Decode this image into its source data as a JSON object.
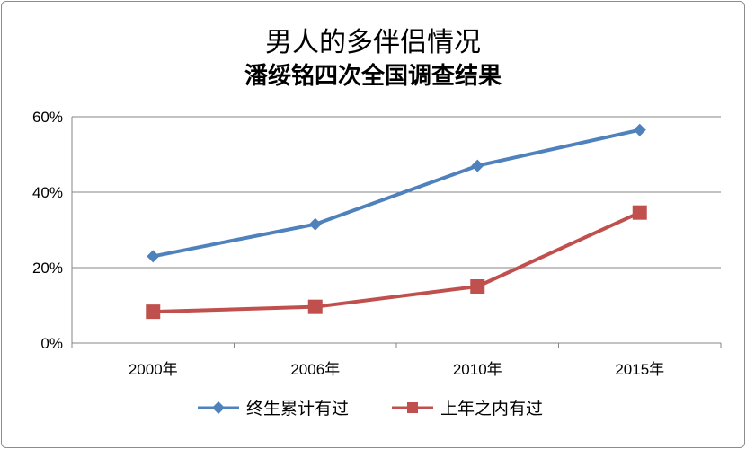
{
  "chart_data": {
    "type": "line",
    "title": "男人的多伴侣情况",
    "subtitle": "潘绥铭四次全国调查结果",
    "categories": [
      "2000年",
      "2006年",
      "2010年",
      "2015年"
    ],
    "ylim": [
      0,
      60
    ],
    "yticks": [
      0,
      20,
      40,
      60
    ],
    "ytick_labels": [
      "0%",
      "20%",
      "40%",
      "60%"
    ],
    "grid": true,
    "legend_position": "bottom",
    "series": [
      {
        "name": "终生累计有过",
        "values": [
          23,
          31.5,
          47,
          56.5
        ],
        "color": "#4f81bd",
        "marker": "diamond"
      },
      {
        "name": "上年之内有过",
        "values": [
          8.3,
          9.6,
          15,
          34.6
        ],
        "color": "#c0504d",
        "marker": "square"
      }
    ]
  }
}
